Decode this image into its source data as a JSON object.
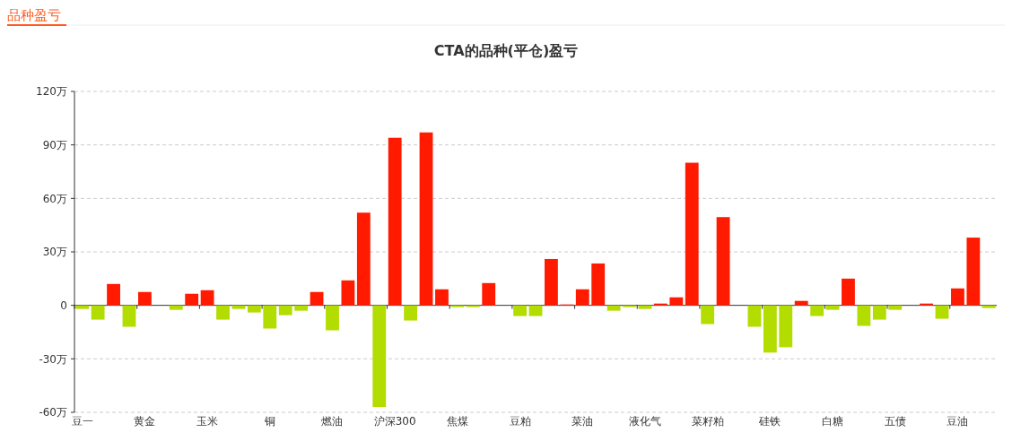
{
  "chart_data": {
    "type": "bar",
    "title": "CTA的品种(平仓)盈亏",
    "annotations": [
      "品种盈亏"
    ],
    "categories": [
      "豆一",
      null,
      null,
      null,
      "黄金",
      null,
      null,
      null,
      "玉米",
      null,
      null,
      null,
      "铜",
      null,
      null,
      null,
      "燃油",
      null,
      null,
      null,
      "沪深300",
      null,
      null,
      null,
      "焦煤",
      null,
      null,
      null,
      "豆粕",
      null,
      null,
      null,
      "菜油",
      null,
      null,
      null,
      "液化气",
      null,
      null,
      null,
      "菜籽粕",
      null,
      null,
      null,
      "硅铁",
      null,
      null,
      null,
      "白糖",
      null,
      null,
      null,
      "五债",
      null,
      null,
      null,
      "豆油",
      null,
      null
    ],
    "values": [
      -2,
      -8,
      12,
      -12,
      7.5,
      0,
      -2.5,
      6.5,
      8.5,
      -8,
      -2,
      -4,
      -13,
      -5.5,
      -3,
      7.5,
      -14,
      14,
      52,
      -57,
      94,
      -8.5,
      97,
      9,
      -1,
      -1,
      12.5,
      0,
      -6,
      -6,
      26,
      0.5,
      9,
      23.5,
      -3,
      -1,
      -2,
      1,
      4.5,
      80,
      -10.5,
      49.5,
      0,
      -12,
      -26.5,
      -23.5,
      2.5,
      -6,
      -2.5,
      15,
      -11.5,
      -8,
      -2.5,
      0,
      1,
      -7.5,
      9.5,
      38,
      -1.5
    ],
    "colors": [
      "#b3dc00",
      "#b3dc00",
      "#ff1a00",
      "#b3dc00",
      "#ff1a00",
      "#ff1a00",
      "#b3dc00",
      "#ff1a00",
      "#ff1a00",
      "#b3dc00",
      "#b3dc00",
      "#b3dc00",
      "#b3dc00",
      "#b3dc00",
      "#b3dc00",
      "#ff1a00",
      "#b3dc00",
      "#ff1a00",
      "#ff1a00",
      "#b3dc00",
      "#ff1a00",
      "#b3dc00",
      "#ff1a00",
      "#ff1a00",
      "#b3dc00",
      "#b3dc00",
      "#ff1a00",
      "#ff1a00",
      "#b3dc00",
      "#b3dc00",
      "#ff1a00",
      "#ff1a00",
      "#ff1a00",
      "#ff1a00",
      "#b3dc00",
      "#b3dc00",
      "#b3dc00",
      "#ff1a00",
      "#ff1a00",
      "#ff1a00",
      "#b3dc00",
      "#ff1a00",
      "#ff1a00",
      "#b3dc00",
      "#b3dc00",
      "#b3dc00",
      "#ff1a00",
      "#b3dc00",
      "#b3dc00",
      "#ff1a00",
      "#b3dc00",
      "#b3dc00",
      "#b3dc00",
      "#ff1a00",
      "#ff1a00",
      "#b3dc00",
      "#ff1a00",
      "#ff1a00",
      "#b3dc00"
    ],
    "ylim": [
      -60,
      120
    ],
    "yticks": [
      {
        "value": -60,
        "label": "-60万"
      },
      {
        "value": -30,
        "label": "-30万"
      },
      0,
      {
        "value": 30,
        "label": "30万"
      },
      {
        "value": 60,
        "label": "60万"
      },
      {
        "value": 90,
        "label": "90万"
      },
      {
        "value": 120,
        "label": "120万"
      }
    ],
    "grid": "y"
  }
}
